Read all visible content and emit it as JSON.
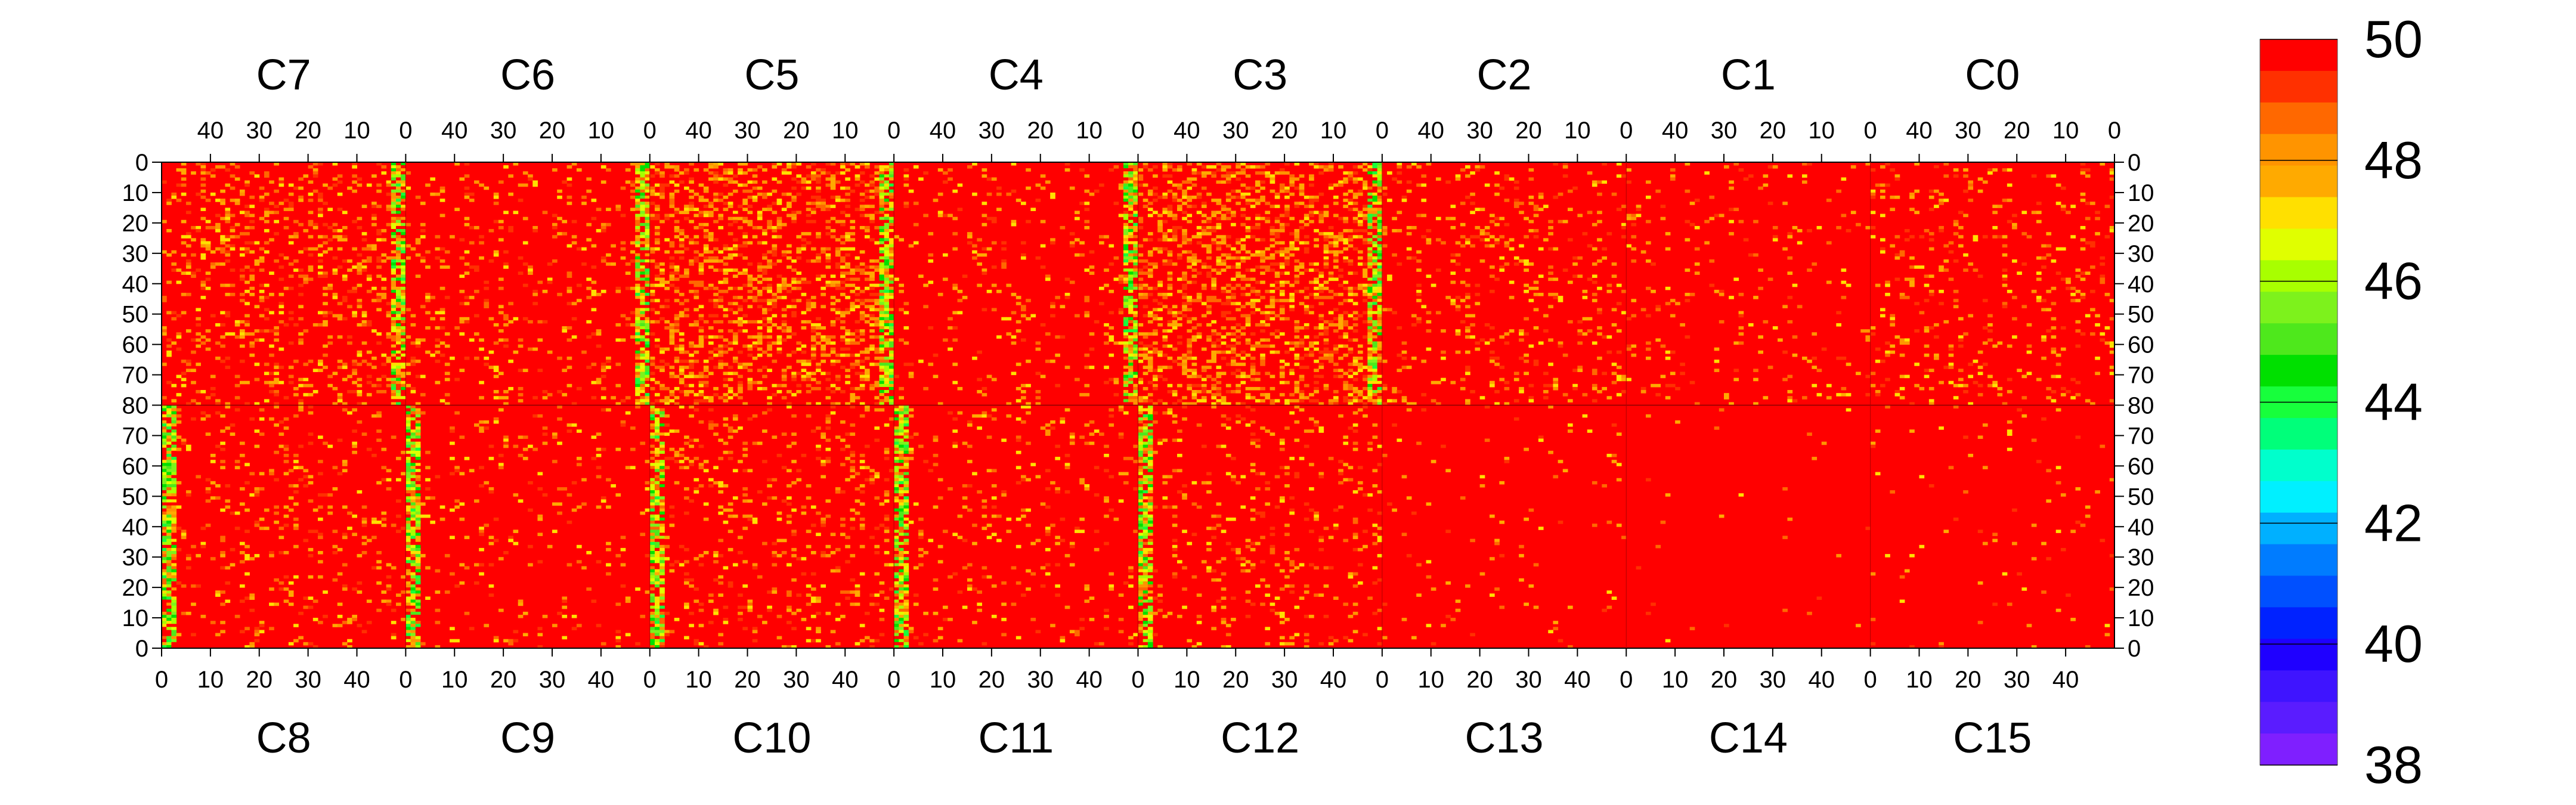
{
  "chart_data": {
    "type": "heatmap",
    "title": "",
    "top_chip_labels": [
      "C7",
      "C6",
      "C5",
      "C4",
      "C3",
      "C2",
      "C1",
      "C0"
    ],
    "bottom_chip_labels": [
      "C8",
      "C9",
      "C10",
      "C11",
      "C12",
      "C13",
      "C14",
      "C15"
    ],
    "chip_columns": 50,
    "chip_rows": 80,
    "top_x_ticks": [
      "40",
      "30",
      "20",
      "10",
      "0"
    ],
    "bottom_x_ticks": [
      "0",
      "10",
      "20",
      "30",
      "40"
    ],
    "top_y_ticks": [
      "0",
      "10",
      "20",
      "30",
      "40",
      "50",
      "60",
      "70",
      "80"
    ],
    "bottom_y_ticks": [
      "80",
      "70",
      "60",
      "50",
      "40",
      "30",
      "20",
      "10",
      "0"
    ],
    "colorbar": {
      "min": 38,
      "max": 50,
      "tick_labels": [
        "50",
        "48",
        "46",
        "44",
        "42",
        "40",
        "38"
      ],
      "colors": [
        "#7f1fff",
        "#5a1cff",
        "#3f14ff",
        "#1f00ff",
        "#0022ff",
        "#0050ff",
        "#007cff",
        "#00b0ff",
        "#00f0ff",
        "#00ffcc",
        "#00ff7a",
        "#17ff3c",
        "#00e000",
        "#4ee81c",
        "#7df21c",
        "#a8ff00",
        "#e0ff00",
        "#ffe000",
        "#ffaa00",
        "#ff9400",
        "#ff6800",
        "#ff3000",
        "#ff0000"
      ]
    },
    "base_value": 50,
    "noise_columns": {
      "top": [
        0.18,
        0.1,
        0.32,
        0.08,
        0.34,
        0.12,
        0.05,
        0.1
      ],
      "bottom": [
        0.1,
        0.06,
        0.12,
        0.07,
        0.1,
        0.02,
        0.01,
        0.02
      ]
    },
    "hot_columns": {
      "top_row_band_at_col": [
        0,
        0,
        0,
        0,
        0,
        0,
        0,
        0
      ],
      "band_description": "low-value vertical bands near the chip boundaries at column 0"
    }
  }
}
